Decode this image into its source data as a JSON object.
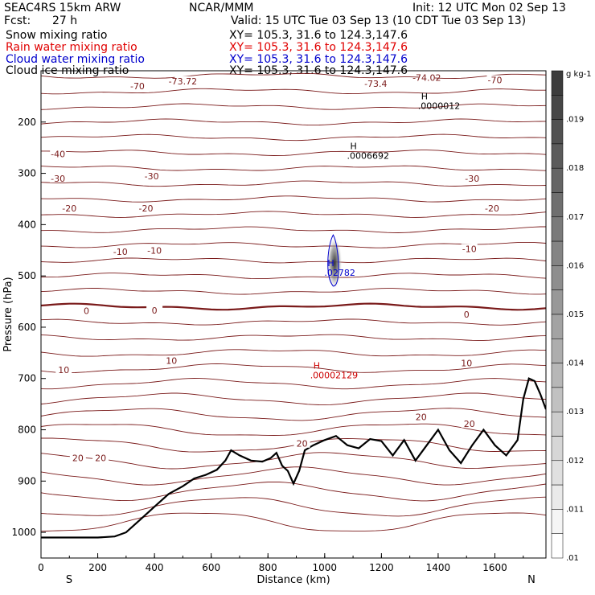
{
  "header": {
    "model": "SEAC4RS 15km ARW",
    "center": "NCAR/MMM",
    "init": "Init: 12 UTC Mon 02 Sep 13",
    "fcst_label": "Fcst:",
    "fcst_value": "27 h",
    "valid": "Valid: 15 UTC Tue 03 Sep 13 (10 CDT Tue 03 Sep 13)"
  },
  "fields": [
    {
      "name": "Snow mixing ratio",
      "xy": "XY= 105.3, 31.6 to 124.3,147.6",
      "color": "#000000"
    },
    {
      "name": "Rain water mixing ratio",
      "xy": "XY= 105.3, 31.6 to 124.3,147.6",
      "color": "#e00000"
    },
    {
      "name": "Cloud water mixing ratio",
      "xy": "XY= 105.3, 31.6 to 124.3,147.6",
      "color": "#0000cc"
    },
    {
      "name": "Cloud ice mixing ratio",
      "xy": "XY= 105.3, 31.6 to 124.3,147.6",
      "color": "#000000"
    }
  ],
  "chart_data": {
    "type": "cross-section",
    "xlabel": "Distance (km)",
    "ylabel": "Pressure (hPa)",
    "xlim": [
      0,
      1780
    ],
    "ylim": [
      1050,
      100
    ],
    "x_ticks": [
      0,
      200,
      400,
      600,
      800,
      1000,
      1200,
      1400,
      1600
    ],
    "y_ticks": [
      200,
      300,
      400,
      500,
      600,
      700,
      800,
      900,
      1000
    ],
    "endpoints": {
      "left": "S",
      "right": "N"
    },
    "colorbar": {
      "units": "g kg-1",
      "labels": [
        ".019",
        ".018",
        ".017",
        ".016",
        ".015",
        ".014",
        ".013",
        ".012",
        ".011",
        ".01"
      ]
    },
    "temperature_contour_labels": [
      {
        "text": "-73.72",
        "x": 500,
        "p": 120
      },
      {
        "text": "-73.4",
        "x": 1180,
        "p": 125
      },
      {
        "text": "-74.02",
        "x": 1360,
        "p": 113
      },
      {
        "text": "-70",
        "x": 340,
        "p": 130
      },
      {
        "text": "-70",
        "x": 1600,
        "p": 118
      },
      {
        "text": "-40",
        "x": 60,
        "p": 262
      },
      {
        "text": "-30",
        "x": 60,
        "p": 310
      },
      {
        "text": "-30",
        "x": 390,
        "p": 305
      },
      {
        "text": "-30",
        "x": 1520,
        "p": 310
      },
      {
        "text": "-20",
        "x": 100,
        "p": 368
      },
      {
        "text": "-20",
        "x": 370,
        "p": 368
      },
      {
        "text": "-20",
        "x": 1590,
        "p": 368
      },
      {
        "text": "-10",
        "x": 280,
        "p": 453
      },
      {
        "text": "-10",
        "x": 400,
        "p": 450
      },
      {
        "text": "-10",
        "x": 1510,
        "p": 447
      },
      {
        "text": "0",
        "x": 160,
        "p": 568
      },
      {
        "text": "0",
        "x": 400,
        "p": 567
      },
      {
        "text": "0",
        "x": 1500,
        "p": 575
      },
      {
        "text": "10",
        "x": 80,
        "p": 683
      },
      {
        "text": "10",
        "x": 460,
        "p": 665
      },
      {
        "text": "10",
        "x": 1500,
        "p": 670
      },
      {
        "text": "20",
        "x": 130,
        "p": 855
      },
      {
        "text": "20",
        "x": 210,
        "p": 855
      },
      {
        "text": "20",
        "x": 920,
        "p": 827
      },
      {
        "text": "20",
        "x": 1340,
        "p": 775
      },
      {
        "text": "20",
        "x": 1510,
        "p": 788
      }
    ],
    "extrema_labels": [
      {
        "mark": "H",
        "value": ".0000012",
        "x": 1340,
        "p": 165,
        "color": "#000000"
      },
      {
        "mark": "H",
        "value": ".0006692",
        "x": 1090,
        "p": 262,
        "color": "#000000"
      },
      {
        "mark": "H",
        "value": ".02782",
        "x": 1010,
        "p": 490,
        "color": "#0000cc"
      },
      {
        "mark": "H",
        "value": ".00002129",
        "x": 960,
        "p": 690,
        "color": "#cc0000"
      }
    ],
    "terrain": {
      "x": [
        0,
        100,
        200,
        260,
        300,
        350,
        400,
        450,
        500,
        540,
        580,
        620,
        650,
        670,
        700,
        740,
        780,
        810,
        830,
        850,
        870,
        890,
        910,
        930,
        960,
        1000,
        1040,
        1080,
        1120,
        1160,
        1200,
        1240,
        1280,
        1320,
        1360,
        1400,
        1440,
        1480,
        1520,
        1560,
        1600,
        1640,
        1680,
        1700,
        1720,
        1740,
        1760,
        1780
      ],
      "p": [
        1010,
        1010,
        1010,
        1008,
        1000,
        975,
        950,
        925,
        910,
        895,
        888,
        878,
        860,
        840,
        850,
        860,
        862,
        855,
        845,
        870,
        880,
        905,
        880,
        840,
        830,
        820,
        812,
        830,
        836,
        818,
        822,
        850,
        820,
        860,
        830,
        800,
        840,
        865,
        830,
        800,
        830,
        850,
        820,
        740,
        700,
        705,
        730,
        760
      ]
    }
  }
}
